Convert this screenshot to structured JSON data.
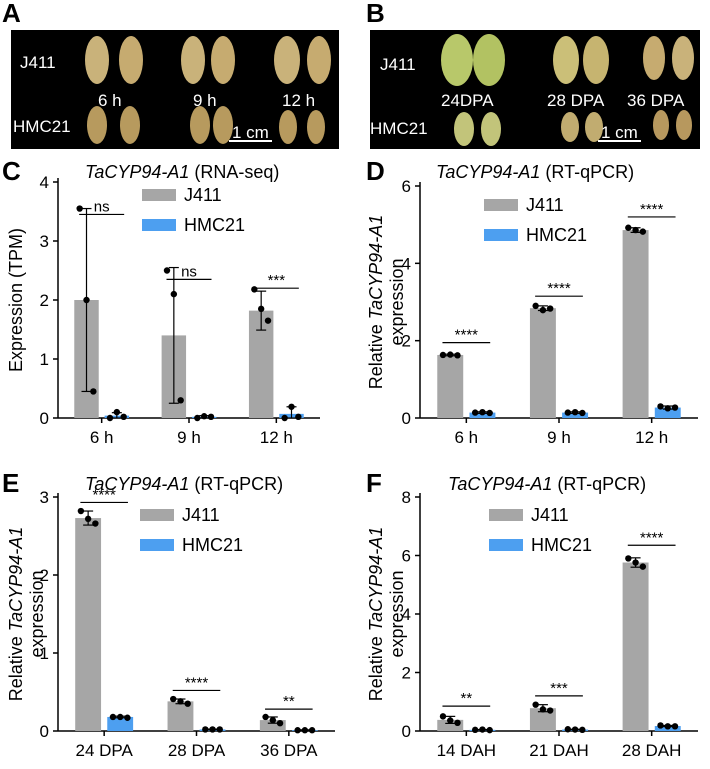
{
  "colors": {
    "j411": "#a6a6a6",
    "hmc21": "#4d9ff0",
    "photo_bg": "#000000",
    "grain_mature": "#c9b27a",
    "grain_green": "#b8c86a"
  },
  "panel_a": {
    "letter": "A",
    "row1": "J411",
    "row2": "HMC21",
    "time1": "6 h",
    "time2": "9 h",
    "time3": "12 h",
    "scale": "1 cm"
  },
  "panel_b": {
    "letter": "B",
    "row1": "J411",
    "row2": "HMC21",
    "time1": "24DPA",
    "time2": "28 DPA",
    "time3": "36 DPA",
    "scale": "1 cm"
  },
  "chart_data": [
    {
      "id": "C",
      "letter": "C",
      "type": "bar",
      "title_italic": "TaCYP94-A1",
      "title_rest": " (RNA-seq)",
      "ylabel": "Expression (TPM)",
      "ylabel_italic": "",
      "ylabel_line2": "",
      "ylim": [
        0,
        4
      ],
      "yticks": [
        0,
        1,
        2,
        3,
        4
      ],
      "categories": [
        "6 h",
        "9 h",
        "12 h"
      ],
      "series": [
        {
          "name": "J411",
          "values": [
            2.0,
            1.4,
            1.82
          ],
          "errors": [
            1.55,
            1.15,
            0.33
          ],
          "points": [
            [
              3.55,
              2.0,
              0.45
            ],
            [
              2.5,
              2.1,
              0.3
            ],
            [
              2.18,
              1.85,
              1.65
            ]
          ]
        },
        {
          "name": "HMC21",
          "values": [
            0.04,
            0.02,
            0.07
          ],
          "errors": [
            0.05,
            0.02,
            0.12
          ],
          "points": [
            [
              0.0,
              0.1,
              0.02
            ],
            [
              0.0,
              0.03,
              0.02
            ],
            [
              0.0,
              0.19,
              0.02
            ]
          ]
        }
      ],
      "significance": [
        "ns",
        "ns",
        "***"
      ],
      "sig_level": [
        3.45,
        2.35,
        2.2
      ]
    },
    {
      "id": "D",
      "letter": "D",
      "type": "bar",
      "title_italic": "TaCYP94-A1",
      "title_rest": " (RT-qPCR)",
      "ylabel": "Relative ",
      "ylabel_italic": "TaCYP94-A1",
      "ylabel_line2": "expression",
      "ylim": [
        0,
        6
      ],
      "yticks": [
        0,
        2,
        4,
        6
      ],
      "categories": [
        "6 h",
        "9 h",
        "12 h"
      ],
      "series": [
        {
          "name": "J411",
          "values": [
            1.63,
            2.84,
            4.86
          ],
          "errors": [
            0.02,
            0.06,
            0.06
          ],
          "points": [
            [
              1.63,
              1.64,
              1.62
            ],
            [
              2.9,
              2.79,
              2.83
            ],
            [
              4.92,
              4.86,
              4.82
            ]
          ]
        },
        {
          "name": "HMC21",
          "values": [
            0.14,
            0.14,
            0.27
          ],
          "errors": [
            0.02,
            0.02,
            0.04
          ],
          "points": [
            [
              0.14,
              0.15,
              0.13
            ],
            [
              0.14,
              0.15,
              0.13
            ],
            [
              0.3,
              0.25,
              0.27
            ]
          ]
        }
      ],
      "significance": [
        "****",
        "****",
        "****"
      ],
      "sig_level": [
        1.95,
        3.15,
        5.2
      ]
    },
    {
      "id": "E",
      "letter": "E",
      "type": "bar",
      "title_italic": "TaCYP94-A1",
      "title_rest": " (RT-qPCR)",
      "ylabel": "Relative ",
      "ylabel_italic": "TaCYP94-A1",
      "ylabel_line2": "expression",
      "ylim": [
        0,
        3
      ],
      "yticks": [
        0,
        1,
        2,
        3
      ],
      "categories": [
        "24 DPA",
        "28 DPA",
        "36 DPA"
      ],
      "series": [
        {
          "name": "J411",
          "values": [
            2.73,
            0.38,
            0.14
          ],
          "errors": [
            0.09,
            0.03,
            0.04
          ],
          "points": [
            [
              2.82,
              2.72,
              2.66
            ],
            [
              0.41,
              0.38,
              0.35
            ],
            [
              0.18,
              0.14,
              0.1
            ]
          ]
        },
        {
          "name": "HMC21",
          "values": [
            0.18,
            0.02,
            0.01
          ],
          "errors": [
            0.01,
            0.005,
            0.005
          ],
          "points": [
            [
              0.18,
              0.18,
              0.17
            ],
            [
              0.02,
              0.02,
              0.02
            ],
            [
              0.01,
              0.01,
              0.01
            ]
          ]
        }
      ],
      "significance": [
        "****",
        "****",
        "**"
      ],
      "sig_level": [
        2.93,
        0.52,
        0.28
      ]
    },
    {
      "id": "F",
      "letter": "F",
      "type": "bar",
      "title_italic": "TaCYP94-A1",
      "title_rest": " (RT-qPCR)",
      "ylabel": "Relative ",
      "ylabel_italic": "TaCYP94-A1",
      "ylabel_line2": "expression",
      "ylim": [
        0,
        8
      ],
      "yticks": [
        0,
        2,
        4,
        6,
        8
      ],
      "categories": [
        "14 DAH",
        "21 DAH",
        "28 DAH"
      ],
      "series": [
        {
          "name": "J411",
          "values": [
            0.38,
            0.78,
            5.76
          ],
          "errors": [
            0.12,
            0.12,
            0.16
          ],
          "points": [
            [
              0.5,
              0.36,
              0.28
            ],
            [
              0.9,
              0.74,
              0.7
            ],
            [
              5.9,
              5.76,
              5.62
            ]
          ]
        },
        {
          "name": "HMC21",
          "values": [
            0.04,
            0.05,
            0.17
          ],
          "errors": [
            0.01,
            0.01,
            0.02
          ],
          "points": [
            [
              0.04,
              0.05,
              0.03
            ],
            [
              0.06,
              0.05,
              0.04
            ],
            [
              0.19,
              0.16,
              0.16
            ]
          ]
        }
      ],
      "significance": [
        "**",
        "***",
        "****"
      ],
      "sig_level": [
        0.85,
        1.2,
        6.35
      ]
    }
  ]
}
